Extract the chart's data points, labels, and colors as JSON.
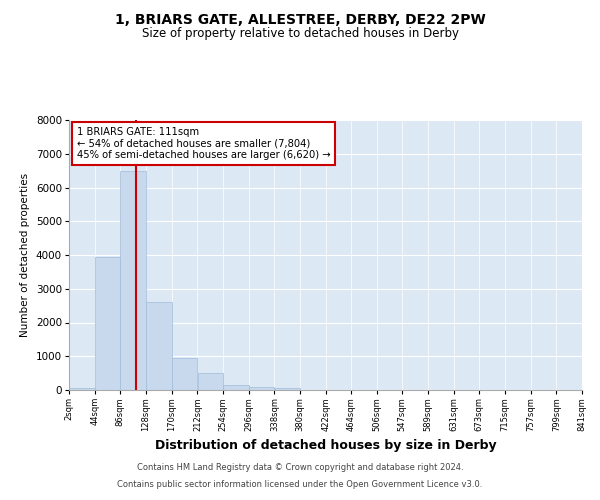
{
  "title_line1": "1, BRIARS GATE, ALLESTREE, DERBY, DE22 2PW",
  "title_line2": "Size of property relative to detached houses in Derby",
  "xlabel": "Distribution of detached houses by size in Derby",
  "ylabel": "Number of detached properties",
  "footer_line1": "Contains HM Land Registry data © Crown copyright and database right 2024.",
  "footer_line2": "Contains public sector information licensed under the Open Government Licence v3.0.",
  "annotation_line1": "1 BRIARS GATE: 111sqm",
  "annotation_line2": "← 54% of detached houses are smaller (7,804)",
  "annotation_line3": "45% of semi-detached houses are larger (6,620) →",
  "red_line_x": 111,
  "bar_edges": [
    2,
    44,
    86,
    128,
    170,
    212,
    254,
    296,
    338,
    380,
    422,
    464,
    506,
    547,
    589,
    631,
    673,
    715,
    757,
    799,
    841
  ],
  "bar_heights": [
    50,
    3950,
    6500,
    2600,
    950,
    500,
    150,
    100,
    50,
    10,
    5,
    2,
    1,
    0,
    0,
    0,
    0,
    0,
    0,
    0
  ],
  "bar_color": "#c8d9ee",
  "bar_edgecolor": "#a0bcd8",
  "red_line_color": "#cc0000",
  "annotation_box_edgecolor": "#cc0000",
  "plot_background": "#dce9f5",
  "figure_background": "#ffffff",
  "ylim": [
    0,
    8000
  ],
  "yticks": [
    0,
    1000,
    2000,
    3000,
    4000,
    5000,
    6000,
    7000,
    8000
  ],
  "grid_color": "#ffffff",
  "tick_labels": [
    "2sqm",
    "44sqm",
    "86sqm",
    "128sqm",
    "170sqm",
    "212sqm",
    "254sqm",
    "296sqm",
    "338sqm",
    "380sqm",
    "422sqm",
    "464sqm",
    "506sqm",
    "547sqm",
    "589sqm",
    "631sqm",
    "673sqm",
    "715sqm",
    "757sqm",
    "799sqm",
    "841sqm"
  ]
}
